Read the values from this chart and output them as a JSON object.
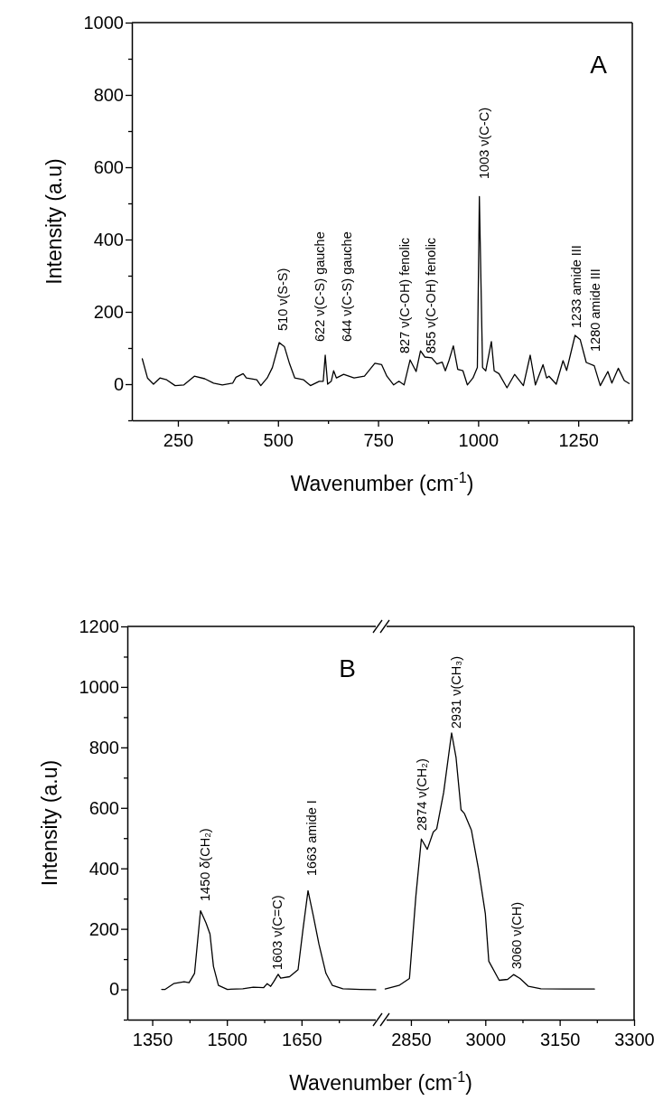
{
  "chart_data": [
    {
      "type": "line",
      "title": "A",
      "xlabel": "Wavenumber (cm$^{-1}$)",
      "ylabel": "Intensity (a.u)",
      "xlim": [
        135,
        1385
      ],
      "ylim": [
        -100,
        1000
      ],
      "xticks": [
        250,
        {
          "value": 375,
          "label": null
        },
        500,
        {
          "value": 625,
          "label": null
        },
        750,
        {
          "value": 875,
          "label": null
        },
        1000,
        {
          "value": 1125,
          "label": null
        },
        1250,
        {
          "value": 1375,
          "label": null
        }
      ],
      "yticks": [
        {
          "value": -100,
          "label": null
        },
        0,
        {
          "value": 100,
          "label": null
        },
        200,
        {
          "value": 300,
          "label": null
        },
        400,
        {
          "value": 500,
          "label": null
        },
        600,
        {
          "value": 700,
          "label": null
        },
        800,
        {
          "value": 900,
          "label": null
        },
        1000
      ],
      "series": [
        {
          "color": "#000000",
          "x": [
            161,
            174,
            189,
            205,
            222,
            243,
            265,
            291,
            317,
            339,
            361,
            387,
            395,
            413,
            421,
            447,
            457,
            473,
            486,
            503,
            516,
            529,
            542,
            564,
            581,
            603,
            613,
            618,
            624,
            633,
            639,
            646,
            664,
            690,
            716,
            742,
            759,
            772,
            789,
            802,
            815,
            830,
            845,
            856,
            867,
            884,
            897,
            910,
            918,
            927,
            938,
            949,
            962,
            973,
            987,
            998,
            1003,
            1011,
            1019,
            1033,
            1040,
            1052,
            1072,
            1091,
            1113,
            1130,
            1143,
            1162,
            1171,
            1177,
            1195,
            1212,
            1221,
            1242,
            1255,
            1270,
            1290,
            1305,
            1324,
            1334,
            1350,
            1365,
            1377
          ],
          "values": [
            70,
            17,
            0,
            17,
            12,
            -4,
            -2,
            22,
            15,
            3,
            -2,
            3,
            19,
            29,
            17,
            12,
            -4,
            17,
            46,
            115,
            104,
            56,
            17,
            12,
            -4,
            8,
            8,
            80,
            0,
            8,
            37,
            17,
            27,
            17,
            22,
            58,
            54,
            22,
            -2,
            8,
            -2,
            67,
            35,
            92,
            75,
            73,
            56,
            61,
            37,
            65,
            106,
            41,
            37,
            -2,
            17,
            46,
            519,
            46,
            37,
            118,
            37,
            29,
            -10,
            27,
            -4,
            80,
            -2,
            54,
            17,
            22,
            0,
            65,
            38,
            135,
            123,
            60,
            51,
            -4,
            35,
            3,
            44,
            10,
            2
          ]
        }
      ],
      "annotations": [
        "510 ν(S-S)",
        "622 ν(C-S) gauche",
        "644 ν(C-S) gauche",
        "827 ν(C-OH) fenolic",
        "855 ν(C-OH) fenolic",
        "1003 ν(C-C)",
        "1233 amide III",
        "1280 amide III"
      ]
    },
    {
      "type": "line",
      "title": "B",
      "xlabel": "Wavenumber (cm$^{-1}$)",
      "ylabel": "Intensity (a.u)",
      "xlim": [
        1300,
        1810
      ],
      "ylim": [
        -100,
        1200
      ],
      "xticks": [
        1350,
        {
          "value": 1425,
          "label": null
        },
        1500,
        {
          "value": 1575,
          "label": null
        },
        1650,
        {
          "value": 1725,
          "label": null
        }
      ],
      "yticks": [
        {
          "value": -100,
          "label": null
        },
        0,
        {
          "value": 100,
          "label": null
        },
        200,
        {
          "value": 300,
          "label": null
        },
        400,
        {
          "value": 500,
          "label": null
        },
        600,
        {
          "value": 700,
          "label": null
        },
        800,
        {
          "value": 900,
          "label": null
        },
        1000,
        {
          "value": 1100,
          "label": null
        },
        1200
      ],
      "series": [
        {
          "color": "#000000",
          "x": [
            1369,
            1376,
            1393,
            1414,
            1424,
            1435,
            1447,
            1458,
            1466,
            1473,
            1483,
            1501,
            1532,
            1553,
            1574,
            1581,
            1588,
            1594,
            1603,
            1608,
            1626,
            1643,
            1653,
            1663,
            1674,
            1685,
            1699,
            1712,
            1733,
            1768,
            1799
          ],
          "values": [
            0,
            0,
            19,
            25,
            22,
            53,
            260,
            220,
            183,
            76,
            13,
            0,
            2,
            7,
            6,
            19,
            10,
            25,
            50,
            37,
            42,
            65,
            200,
            326,
            240,
            149,
            53,
            13,
            2,
            0,
            -1
          ]
        }
      ],
      "annotations": [
        "1450 δ(CH₂)",
        "1603 ν(C=C)",
        "1663 amide I"
      ]
    },
    {
      "type": "line",
      "xlim": [
        2790,
        3300
      ],
      "ylim": [
        -100,
        1200
      ],
      "tick_labels": "x",
      "xticks": [
        2850,
        {
          "value": 2925,
          "label": null
        },
        3000,
        {
          "value": 3075,
          "label": null
        },
        3150,
        {
          "value": 3225,
          "label": null
        },
        3300
      ],
      "series": [
        {
          "color": "#000000",
          "x": [
            2798,
            2826,
            2847,
            2860,
            2871,
            2883,
            2895,
            2902,
            2916,
            2932,
            2941,
            2951,
            2958,
            2972,
            2986,
            3000,
            3007,
            3028,
            3045,
            3057,
            3070,
            3087,
            3112,
            3160,
            3220
          ],
          "values": [
            1,
            13,
            36,
            309,
            497,
            463,
            520,
            531,
            651,
            848,
            766,
            594,
            581,
            526,
            400,
            251,
            93,
            30,
            33,
            49,
            36,
            10,
            2,
            1,
            1
          ]
        }
      ],
      "annotations": [
        "2874 ν(CH₂)",
        "2931 ν(CH₃)",
        "3060 ν(CH)"
      ]
    }
  ]
}
